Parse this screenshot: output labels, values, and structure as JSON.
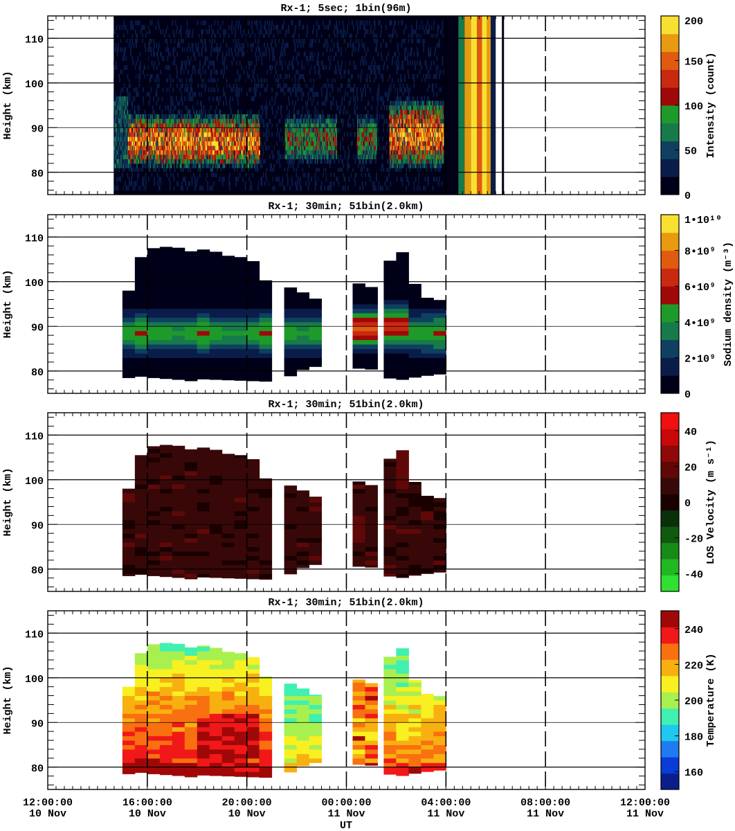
{
  "chart_data": [
    {
      "type": "heatmap",
      "title": "Rx-1;  5sec; 1bin(96m)",
      "ylabel": "Height (km)",
      "ylim": [
        75,
        115
      ],
      "y_ticks": [
        80,
        90,
        100,
        110
      ],
      "xlim_hours_from_start": [
        0,
        24
      ],
      "colorbar": {
        "label": "Intensity (count)",
        "range": [
          0,
          200
        ],
        "ticks": [
          "0",
          "50",
          "100",
          "150",
          "200"
        ],
        "colors": [
          "#000018",
          "#0a1d4a",
          "#0f4060",
          "#177a4a",
          "#1e9a2a",
          "#a00808",
          "#c82a10",
          "#e05a10",
          "#e89a10",
          "#f8e030"
        ]
      },
      "data_extent_hours": [
        2.65,
        18.25
      ],
      "layer_segments": [
        {
          "x": [
            3.2,
            8.5
          ],
          "bottom_km": 81,
          "top_km": 92,
          "peak": 200
        },
        {
          "x": [
            9.5,
            13.2
          ],
          "bottom_km": 82,
          "top_km": 92,
          "peak": 120
        },
        {
          "x": [
            13.7,
            16.5
          ],
          "bottom_km": 81,
          "top_km": 95,
          "peak": 200
        }
      ]
    },
    {
      "type": "heatmap",
      "title": "Rx-1; 30min; 51bin(2.0km)",
      "ylabel": "Height (km)",
      "ylim": [
        75,
        115
      ],
      "y_ticks": [
        80,
        90,
        100,
        110
      ],
      "colorbar": {
        "label": "Sodium density (m⁻³)",
        "range": [
          0,
          10000000000
        ],
        "ticks": [
          "0",
          "2•10⁹",
          "4•10⁹",
          "6•10⁹",
          "8•10⁹",
          "1•10¹⁰"
        ],
        "colors": [
          "#000018",
          "#0a1d4a",
          "#0f4060",
          "#177a4a",
          "#1e9a2a",
          "#a00808",
          "#c82a10",
          "#e05a10",
          "#e89a10",
          "#f8e030"
        ]
      },
      "columns": [
        {
          "x0": 3.0,
          "top": 98,
          "bottom": 78.5
        },
        {
          "x0": 3.5,
          "top": 105.5,
          "bottom": 78.8
        },
        {
          "x0": 4.0,
          "top": 107.5,
          "bottom": 78.5
        },
        {
          "x0": 4.5,
          "top": 107.8,
          "bottom": 78.3
        },
        {
          "x0": 5.0,
          "top": 107.6,
          "bottom": 78.1
        },
        {
          "x0": 5.5,
          "top": 106.8,
          "bottom": 77.8
        },
        {
          "x0": 6.0,
          "top": 107.2,
          "bottom": 78.2
        },
        {
          "x0": 6.5,
          "top": 106.7,
          "bottom": 78.1
        },
        {
          "x0": 7.0,
          "top": 105.8,
          "bottom": 78.0
        },
        {
          "x0": 7.5,
          "top": 105.5,
          "bottom": 77.9
        },
        {
          "x0": 8.0,
          "top": 104.6,
          "bottom": 77.8
        },
        {
          "x0": 8.5,
          "top": 100.3,
          "bottom": 77.7
        },
        {
          "x0": 9.5,
          "top": 98.7,
          "bottom": 78.9
        },
        {
          "x0": 10.0,
          "top": 97.6,
          "bottom": 80.3
        },
        {
          "x0": 10.5,
          "top": 96.2,
          "bottom": 81.0
        },
        {
          "x0": 12.25,
          "top": 99.6,
          "bottom": 80.6
        },
        {
          "x0": 12.75,
          "top": 98.8,
          "bottom": 80.4
        },
        {
          "x0": 13.5,
          "top": 104.7,
          "bottom": 78.4
        },
        {
          "x0": 14.0,
          "top": 106.6,
          "bottom": 78.1
        },
        {
          "x0": 14.5,
          "top": 99.5,
          "bottom": 78.6
        },
        {
          "x0": 15.0,
          "top": 96.4,
          "bottom": 79.0
        },
        {
          "x0": 15.5,
          "top": 95.9,
          "bottom": 79.3
        }
      ],
      "column_width_hours": 0.5
    },
    {
      "type": "heatmap",
      "title": "Rx-1; 30min; 51bin(2.0km)",
      "ylabel": "Height (km)",
      "ylim": [
        75,
        115
      ],
      "y_ticks": [
        80,
        90,
        100,
        110
      ],
      "colorbar": {
        "label": "LOS Velocity (m s⁻¹)",
        "range": [
          -50,
          50
        ],
        "ticks": [
          "-40",
          "-20",
          "0",
          "20",
          "40"
        ],
        "colors": [
          "#30e030",
          "#22b822",
          "#188a18",
          "#0e5a0e",
          "#0a300a",
          "#1a0000",
          "#380808",
          "#600808",
          "#900808",
          "#c80808",
          "#f01010"
        ]
      },
      "typical_value": 5
    },
    {
      "type": "heatmap",
      "title": "Rx-1; 30min; 51bin(2.0km)",
      "ylabel": "Height (km)",
      "ylim": [
        75,
        115
      ],
      "y_ticks": [
        80,
        90,
        100,
        110
      ],
      "xlabel": "UT",
      "x_tick_labels": [
        {
          "time": "12:00:00",
          "date": "10 Nov"
        },
        {
          "time": "16:00:00",
          "date": "10 Nov"
        },
        {
          "time": "20:00:00",
          "date": "10 Nov"
        },
        {
          "time": "00:00:00",
          "date": "11 Nov"
        },
        {
          "time": "04:00:00",
          "date": "11 Nov"
        },
        {
          "time": "08:00:00",
          "date": "11 Nov"
        },
        {
          "time": "12:00:00",
          "date": "11 Nov"
        }
      ],
      "colorbar": {
        "label": "Temperature (K)",
        "range": [
          150,
          250
        ],
        "ticks": [
          "160",
          "180",
          "200",
          "220",
          "240"
        ],
        "colors": [
          "#0a1e8c",
          "#0a3cd8",
          "#1e7cf0",
          "#1ec8f0",
          "#40f0b0",
          "#a8f050",
          "#f8f020",
          "#f8b010",
          "#f87010",
          "#f01818",
          "#a00808"
        ]
      }
    }
  ]
}
